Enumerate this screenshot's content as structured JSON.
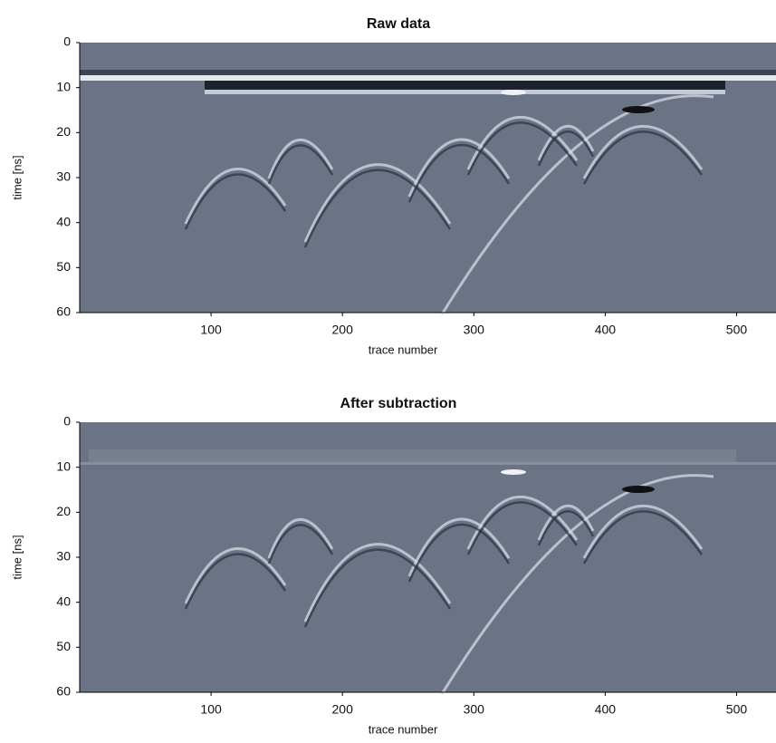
{
  "chart_data": [
    {
      "type": "image",
      "title": "Raw data",
      "xlabel": "trace number",
      "ylabel": "time [ns]",
      "xlim": [
        0,
        530
      ],
      "ylim": [
        0,
        60
      ],
      "xticks": [
        100,
        200,
        300,
        400,
        500
      ],
      "yticks": [
        0,
        10,
        20,
        30,
        40,
        50,
        60
      ]
    },
    {
      "type": "image",
      "title": "After subtraction",
      "xlabel": "trace number",
      "ylabel": "time [ns]",
      "xlim": [
        0,
        530
      ],
      "ylim": [
        0,
        60
      ],
      "xticks": [
        100,
        200,
        300,
        400,
        500
      ],
      "yticks": [
        0,
        10,
        20,
        30,
        40,
        50,
        60
      ]
    }
  ]
}
